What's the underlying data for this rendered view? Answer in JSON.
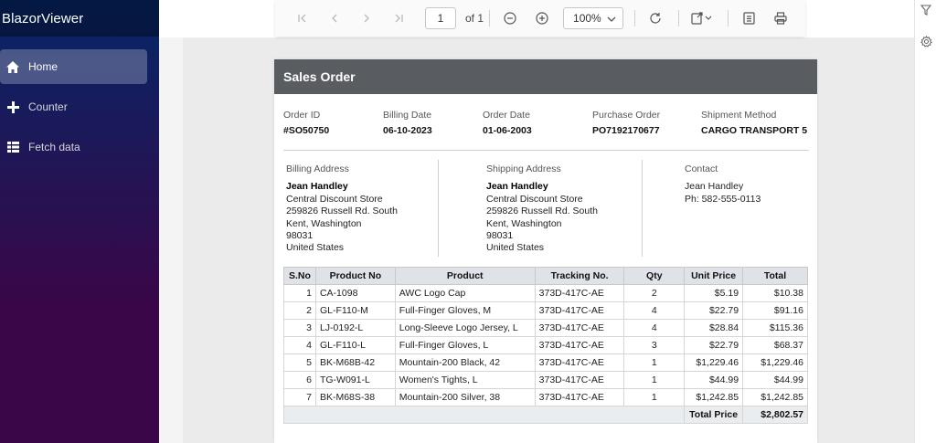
{
  "app": {
    "title": "BlazorViewer"
  },
  "sidebar": {
    "items": [
      {
        "label": "Home",
        "icon": "home-icon",
        "active": true
      },
      {
        "label": "Counter",
        "icon": "plus-icon",
        "active": false
      },
      {
        "label": "Fetch data",
        "icon": "list-icon",
        "active": false
      }
    ]
  },
  "toolbar": {
    "page_value": "1",
    "page_total": "of 1",
    "zoom": "100%"
  },
  "report": {
    "title": "Sales Order",
    "meta": {
      "order_id_label": "Order ID",
      "order_id": "#SO50750",
      "billing_date_label": "Billing Date",
      "billing_date": "06-10-2023",
      "order_date_label": "Order Date",
      "order_date": "01-06-2003",
      "purchase_order_label": "Purchase Order",
      "purchase_order": "PO7192170677",
      "shipment_method_label": "Shipment Method",
      "shipment_method": "CARGO TRANSPORT 5"
    },
    "billing": {
      "label": "Billing Address",
      "name": "Jean Handley",
      "lines": [
        "Central Discount Store",
        "259826 Russell Rd. South",
        "Kent, Washington",
        "98031",
        "United States"
      ]
    },
    "shipping": {
      "label": "Shipping Address",
      "name": "Jean Handley",
      "lines": [
        "Central Discount Store",
        "259826 Russell Rd. South",
        "Kent, Washington",
        "98031",
        "United States"
      ]
    },
    "contact": {
      "label": "Contact",
      "name": "Jean Handley",
      "phone": "Ph: 582-555-0113"
    },
    "table": {
      "headers": [
        "S.No",
        "Product No",
        "Product",
        "Tracking No.",
        "Qty",
        "Unit Price",
        "Total"
      ],
      "rows": [
        [
          "1",
          "CA-1098",
          "AWC Logo Cap",
          "373D-417C-AE",
          "2",
          "$5.19",
          "$10.38"
        ],
        [
          "2",
          "GL-F110-M",
          "Full-Finger Gloves, M",
          "373D-417C-AE",
          "4",
          "$22.79",
          "$91.16"
        ],
        [
          "3",
          "LJ-0192-L",
          "Long-Sleeve Logo Jersey, L",
          "373D-417C-AE",
          "4",
          "$28.84",
          "$115.36"
        ],
        [
          "4",
          "GL-F110-L",
          "Full-Finger Gloves, L",
          "373D-417C-AE",
          "3",
          "$22.79",
          "$68.37"
        ],
        [
          "5",
          "BK-M68B-42",
          "Mountain-200 Black, 42",
          "373D-417C-AE",
          "1",
          "$1,229.46",
          "$1,229.46"
        ],
        [
          "6",
          "TG-W091-L",
          "Women's Tights, L",
          "373D-417C-AE",
          "1",
          "$44.99",
          "$44.99"
        ],
        [
          "7",
          "BK-M68S-38",
          "Mountain-200 Silver, 38",
          "373D-417C-AE",
          "1",
          "$1,242.85",
          "$1,242.85"
        ]
      ],
      "total_label": "Total Price",
      "total_value": "$2,802.57"
    }
  }
}
